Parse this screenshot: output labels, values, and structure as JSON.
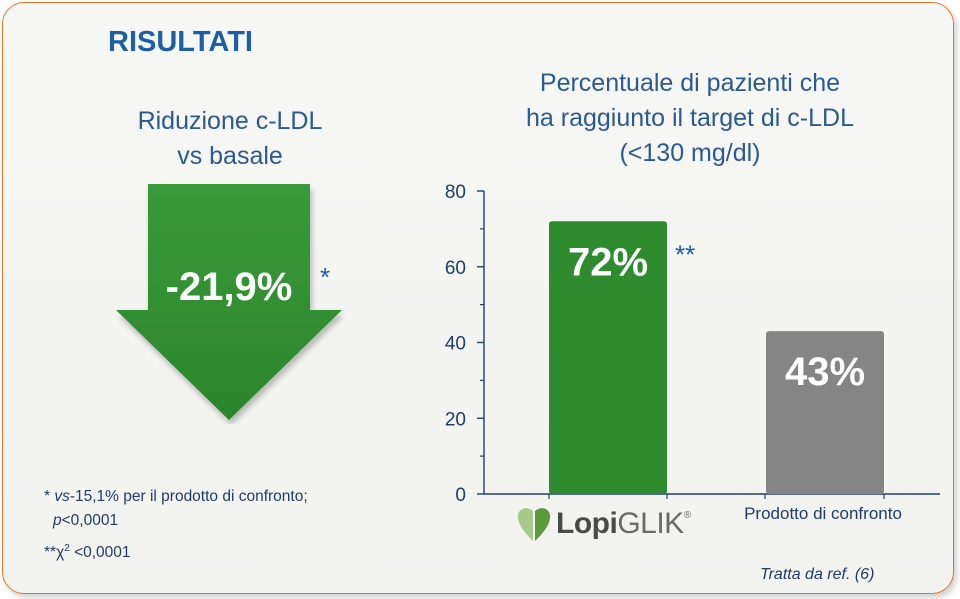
{
  "title": "RISULTATI",
  "left_panel": {
    "subtitle_line1": "Riduzione c-LDL",
    "subtitle_line2": "vs basale",
    "value": "-21,9%",
    "asterisk": "*"
  },
  "right_panel": {
    "subtitle_line1": "Percentuale di pazienti che",
    "subtitle_line2": "ha raggiunto il target di c-LDL",
    "subtitle_line3": "(<130 mg/dl)"
  },
  "chart_data": {
    "type": "bar",
    "categories": [
      "LopiGLIK",
      "Prodotto di confronto"
    ],
    "values": [
      72,
      43
    ],
    "data_labels": [
      "72%",
      "43%"
    ],
    "significance": [
      "**",
      ""
    ],
    "ylim": [
      0,
      80
    ],
    "yticks": [
      0,
      20,
      40,
      60,
      80
    ],
    "colors": [
      "#2e8b2e",
      "#858585"
    ],
    "xlabel": "",
    "ylabel": ""
  },
  "logo": {
    "text_bold": "Lopi",
    "text_light": "GLIK",
    "trademark": "®"
  },
  "footnotes": {
    "fn1_prefix": "* ",
    "fn1_vs": "vs",
    "fn1_rest": "-15,1% per il prodotto di confronto;",
    "fn1_p": "p",
    "fn1_pval": "<0,0001",
    "fn2_prefix": "**χ",
    "fn2_sup": "2",
    "fn2_rest": " <0,0001"
  },
  "reference": "Tratta da ref. (6)",
  "colors": {
    "brand_blue": "#1c5fa4",
    "green": "#2e8b2e",
    "gray": "#858585",
    "border_orange": "#e8742a"
  }
}
